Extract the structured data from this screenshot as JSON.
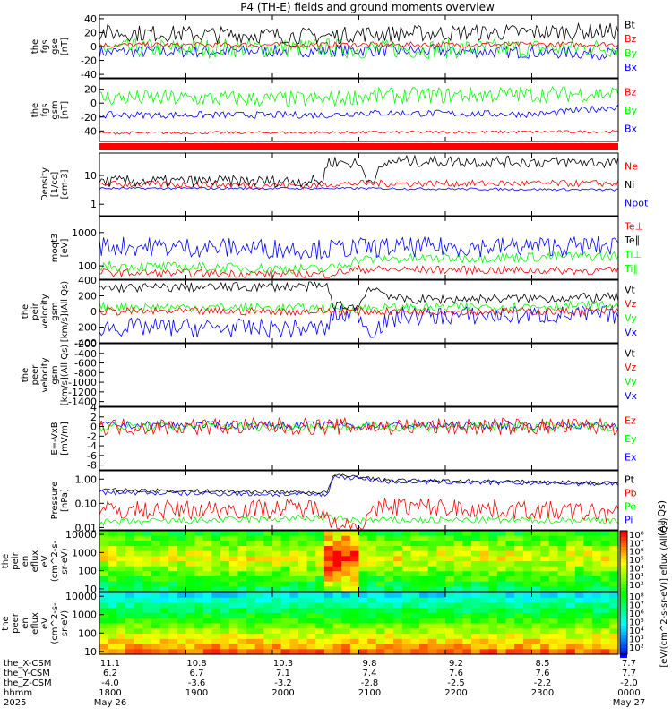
{
  "title": "P4 (TH-E) fields and ground moments overview",
  "palette": {
    "black": "#000000",
    "red": "#ff0000",
    "green": "#00ff00",
    "blue": "#0000ff"
  },
  "chart_data": [
    {
      "type": "line",
      "ylabel_lines": [
        "the",
        "fgs",
        "gse",
        "[nT]"
      ],
      "ylim": [
        -45,
        45
      ],
      "yticks": [
        -40,
        -20,
        0,
        20,
        40
      ],
      "legend": [
        {
          "name": "Bt",
          "color": "#000000"
        },
        {
          "name": "Bz",
          "color": "#ff0000"
        },
        {
          "name": "By",
          "color": "#00ff00"
        },
        {
          "name": "Bx",
          "color": "#0000ff"
        }
      ]
    },
    {
      "type": "line",
      "ylabel_lines": [
        "the",
        "fgs",
        "gsm",
        "[nT]"
      ],
      "ylim": [
        -55,
        35
      ],
      "yticks": [
        -40,
        -20,
        0,
        20
      ],
      "legend": [
        {
          "name": "Bz",
          "color": "#ff0000"
        },
        {
          "name": "By",
          "color": "#00ff00"
        },
        {
          "name": "Bx",
          "color": "#0000ff"
        }
      ]
    },
    {
      "type": "line",
      "ylabel_lines": [
        "Density",
        "[1/cc]",
        "[cm-3]"
      ],
      "ylim": [
        0.4,
        60
      ],
      "scale": "log",
      "yticks": [
        1,
        10
      ],
      "legend": [
        {
          "name": "Ne",
          "color": "#ff0000"
        },
        {
          "name": "Ni",
          "color": "#000000"
        },
        {
          "name": "Npot",
          "color": "#0000ff"
        }
      ]
    },
    {
      "type": "line",
      "ylabel_lines": [
        "moqt3",
        "[eV]"
      ],
      "ylim": [
        40,
        3000
      ],
      "scale": "log",
      "yticks": [
        100,
        1000
      ],
      "legend": [
        {
          "name": "Te⊥",
          "color": "#ff0000"
        },
        {
          "name": "Te∥",
          "color": "#000000"
        },
        {
          "name": "Ti⊥",
          "color": "#00ff00"
        },
        {
          "name": "Ti∥",
          "color": "#00ff00"
        }
      ]
    },
    {
      "type": "line",
      "ylabel_lines": [
        "the",
        "peir",
        "velocity",
        "gsm",
        "[km/s](All Qs)"
      ],
      "ylim": [
        -400,
        400
      ],
      "yticks": [
        -400,
        -200,
        0,
        200,
        400
      ],
      "legend": [
        {
          "name": "Vt",
          "color": "#000000"
        },
        {
          "name": "Vz",
          "color": "#ff0000"
        },
        {
          "name": "Vy",
          "color": "#00ff00"
        },
        {
          "name": "Vx",
          "color": "#0000ff"
        }
      ]
    },
    {
      "type": "line",
      "ylabel_lines": [
        "the",
        "peer",
        "velocity",
        "gsm",
        "[km/s](All Qs)"
      ],
      "ylim": [
        -1500,
        -200
      ],
      "yticks": [
        -1400,
        -1200,
        -1000,
        -800,
        -600,
        -400,
        -200
      ],
      "legend": [
        {
          "name": "Vt",
          "color": "#000000"
        },
        {
          "name": "Vz",
          "color": "#ff0000"
        },
        {
          "name": "Vy",
          "color": "#00ff00"
        },
        {
          "name": "Vx",
          "color": "#0000ff"
        }
      ]
    },
    {
      "type": "line",
      "ylabel_lines": [
        "E=-VxB",
        "[mV/m]"
      ],
      "ylim": [
        -9,
        4
      ],
      "yticks": [
        -8,
        -6,
        -4,
        -2,
        0,
        2,
        4
      ],
      "legend": [
        {
          "name": "Ez",
          "color": "#ff0000"
        },
        {
          "name": "Ey",
          "color": "#00ff00"
        },
        {
          "name": "Ex",
          "color": "#0000ff"
        }
      ]
    },
    {
      "type": "line",
      "ylabel_lines": [
        "Pressure",
        "[nPa]"
      ],
      "ylim": [
        0.008,
        2.2
      ],
      "scale": "log",
      "yticks": [
        0.01,
        0.1,
        1
      ],
      "tick_labels": [
        "0.01",
        "0.10",
        "1.00"
      ],
      "legend": [
        {
          "name": "Pt",
          "color": "#000000"
        },
        {
          "name": "Pb",
          "color": "#ff0000"
        },
        {
          "name": "Pe",
          "color": "#00ff00"
        },
        {
          "name": "Pi",
          "color": "#0000ff"
        }
      ],
      "side_label": "(All Qs)"
    },
    {
      "type": "heatmap",
      "ylabel_lines": [
        "the",
        "peir",
        "en",
        "eflux",
        "eV",
        "(cm^2-s-",
        "sr-eV)"
      ],
      "ylim": [
        7,
        16000
      ],
      "scale": "log",
      "yticks": [
        10,
        100,
        1000,
        10000
      ],
      "colorbar_ticks": [
        "10⁸",
        "10⁷",
        "10⁶",
        "10⁵",
        "10⁴",
        "10³",
        "10²"
      ]
    },
    {
      "type": "heatmap",
      "ylabel_lines": [
        "the",
        "peer",
        "en",
        "eflux",
        "eV",
        "(cm^2-s-",
        "sr-eV)"
      ],
      "ylim": [
        7,
        16000
      ],
      "scale": "log",
      "yticks": [
        10,
        100,
        1000,
        10000
      ],
      "colorbar_ticks": [
        "10⁸",
        "10⁷",
        "10⁶",
        "10⁵",
        "10⁴",
        "10³",
        "10²"
      ]
    }
  ],
  "colorbar_label": "[eV/(cm^2-s-sr-eV)] eflux (All Qs)",
  "x_axis": {
    "row_labels": [
      "the_X-CSM",
      "the_Y-CSM",
      "the_Z-CSM",
      "hhmm",
      "2025"
    ],
    "ticks": [
      {
        "x": "11.1",
        "y": "6.2",
        "z": "-4.0",
        "hhmm": "1800",
        "date": "May 26"
      },
      {
        "x": "10.8",
        "y": "6.7",
        "z": "-3.6",
        "hhmm": "1900",
        "date": ""
      },
      {
        "x": "10.3",
        "y": "7.1",
        "z": "-3.2",
        "hhmm": "2000",
        "date": ""
      },
      {
        "x": "9.8",
        "y": "7.4",
        "z": "-2.8",
        "hhmm": "2100",
        "date": ""
      },
      {
        "x": "9.2",
        "y": "7.6",
        "z": "-2.5",
        "hhmm": "2200",
        "date": ""
      },
      {
        "x": "8.5",
        "y": "7.6",
        "z": "-2.2",
        "hhmm": "2300",
        "date": ""
      },
      {
        "x": "7.7",
        "y": "7.7",
        "z": "-2.0",
        "hhmm": "0000",
        "date": "May 27"
      }
    ]
  }
}
